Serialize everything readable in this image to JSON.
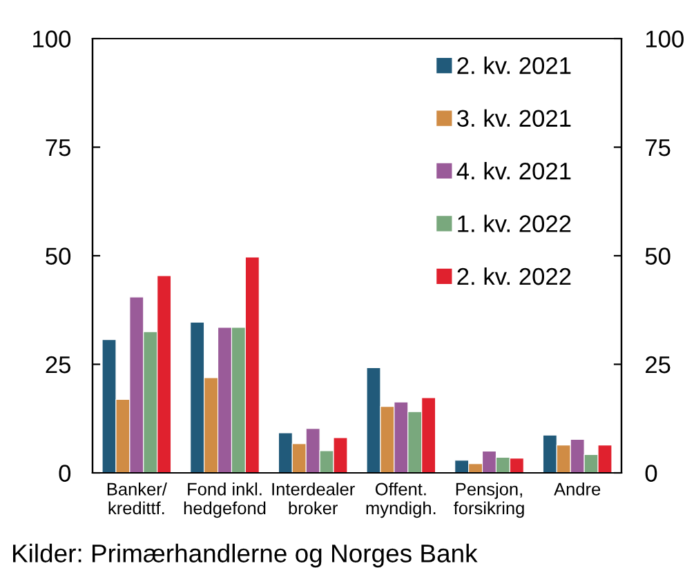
{
  "chart_data": {
    "type": "bar",
    "categories": [
      "Banker/\nkredittf.",
      "Fond inkl.\nhedgefond",
      "Interdealer\nbroker",
      "Offent.\nmyndigh.",
      "Pensjon,\nforsikring",
      "Andre"
    ],
    "series": [
      {
        "name": "2. kv. 2021",
        "color": "#215a7a",
        "values": [
          30.7,
          34.7,
          9.2,
          24.2,
          2.9,
          8.7
        ]
      },
      {
        "name": "3. kv. 2021",
        "color": "#d08c45",
        "values": [
          16.9,
          21.9,
          6.7,
          15.3,
          2.1,
          6.4
        ]
      },
      {
        "name": "4. kv. 2021",
        "color": "#9a5b99",
        "values": [
          40.5,
          33.5,
          10.2,
          16.3,
          5.0,
          7.7
        ]
      },
      {
        "name": "1. kv. 2022",
        "color": "#79a87d",
        "values": [
          32.5,
          33.5,
          5.1,
          14.1,
          3.6,
          4.2
        ]
      },
      {
        "name": "2. kv. 2022",
        "color": "#e0212e",
        "values": [
          45.4,
          49.7,
          8.1,
          17.3,
          3.4,
          6.4
        ]
      }
    ],
    "ylim": [
      0,
      100
    ],
    "yticks": [
      0,
      25,
      50,
      75,
      100
    ],
    "y2lim": [
      0,
      100
    ],
    "y2ticks": [
      0,
      25,
      50,
      75,
      100
    ],
    "grid": false,
    "legend": "top right",
    "annotations": [
      "Kilder: Primærhandlerne og Norges Bank"
    ]
  }
}
